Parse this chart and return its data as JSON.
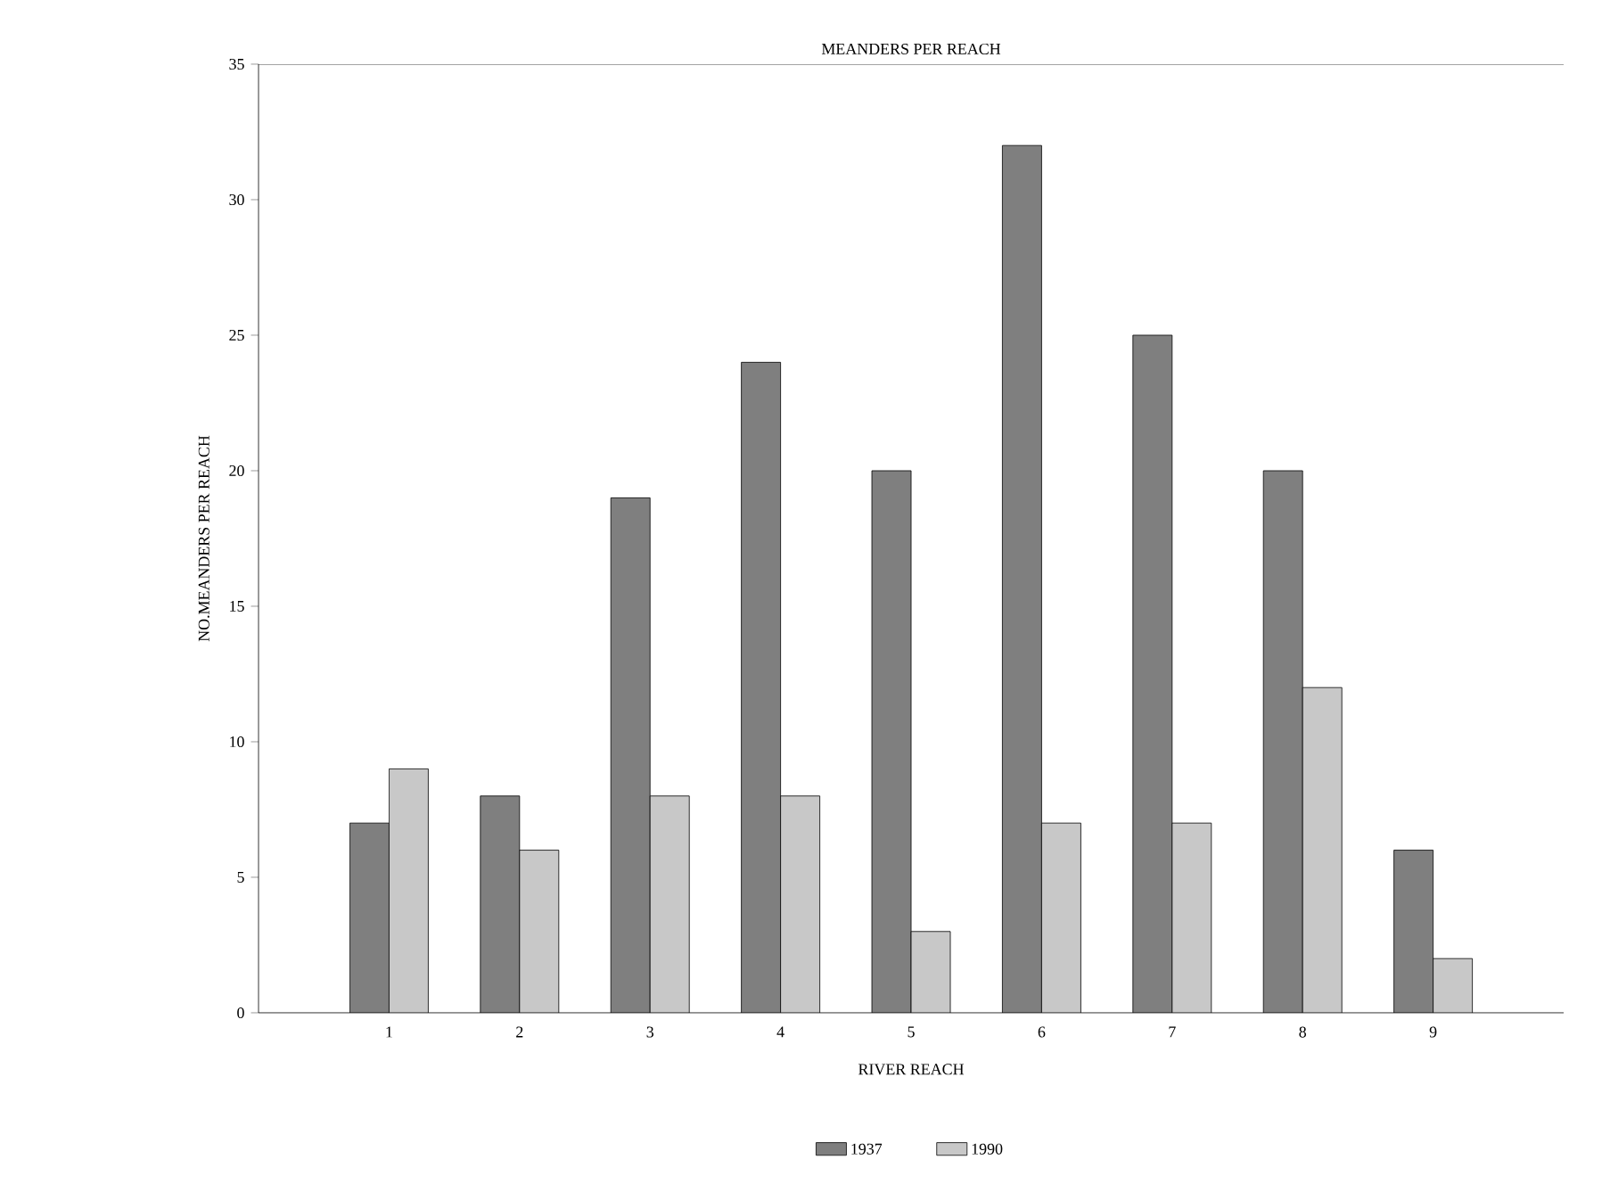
{
  "chart_data": {
    "type": "bar",
    "title": "MEANDERS PER REACH",
    "xlabel": "RIVER REACH",
    "ylabel": "NO.MEANDERS PER REACH",
    "categories": [
      "1",
      "2",
      "3",
      "4",
      "5",
      "6",
      "7",
      "8",
      "9"
    ],
    "series": [
      {
        "name": "1937",
        "color": "#7f7f7f",
        "values": [
          7,
          8,
          19,
          24,
          20,
          32,
          25,
          20,
          6
        ]
      },
      {
        "name": "1990",
        "color": "#c8c8c8",
        "values": [
          9,
          6,
          8,
          8,
          3,
          7,
          7,
          12,
          2
        ]
      }
    ],
    "ylim": [
      0,
      35
    ],
    "yticks": [
      0,
      5,
      10,
      15,
      20,
      25,
      30,
      35
    ],
    "grid": false,
    "legend": "bottom"
  }
}
